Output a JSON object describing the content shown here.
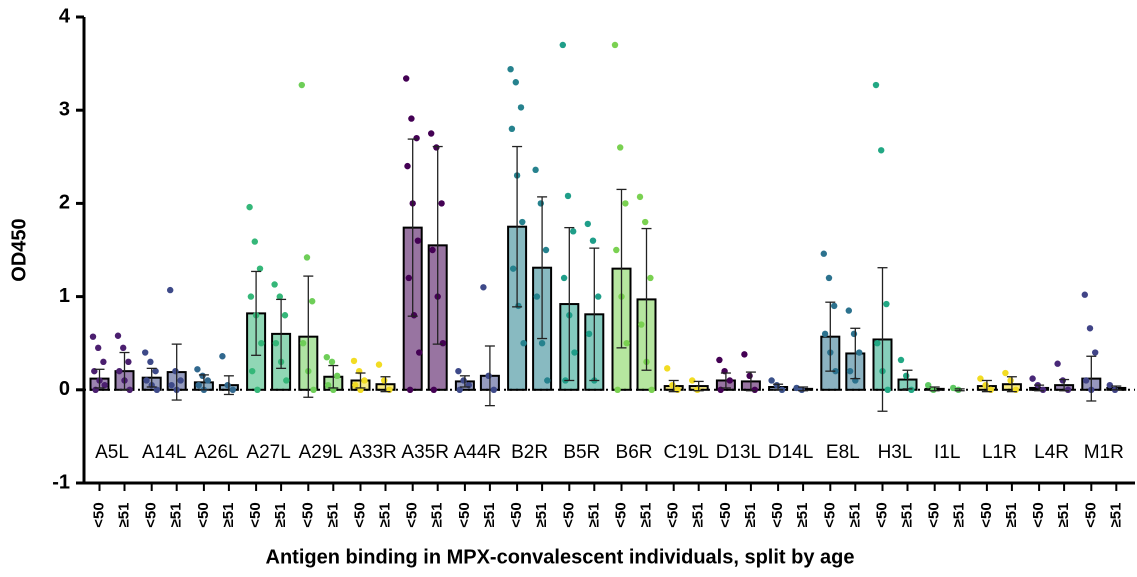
{
  "chart_data": {
    "type": "bar",
    "ylabel": "OD450",
    "xlabel": "Antigen binding in MPX-convalescent individuals, split by age",
    "ylim": [
      -1,
      4
    ],
    "yticks": [
      -1,
      0,
      1,
      2,
      3,
      4
    ],
    "categories": [
      "A5L",
      "A14L",
      "A26L",
      "A27L",
      "A29L",
      "A33R",
      "A35R",
      "A44R",
      "B2R",
      "B5R",
      "B6R",
      "C19L",
      "D13L",
      "D14L",
      "E8L",
      "H3L",
      "I1L",
      "L1R",
      "L4R",
      "M1R"
    ],
    "groups": [
      "<50",
      "≥51"
    ],
    "colors": [
      "#4b1f6f",
      "#3e4a89",
      "#31688e",
      "#35b779",
      "#6ece58",
      "#f2dc23",
      "#440154",
      "#3e4989",
      "#26828e",
      "#1f9e89",
      "#7ad151",
      "#f2dc23",
      "#440154",
      "#3b528b",
      "#2c728e",
      "#22a884",
      "#5ec962",
      "#f2dc23",
      "#482878",
      "#414487"
    ],
    "means": [
      [
        0.12,
        0.2
      ],
      [
        0.13,
        0.19
      ],
      [
        0.08,
        0.05
      ],
      [
        0.82,
        0.6
      ],
      [
        0.57,
        0.14
      ],
      [
        0.1,
        0.06
      ],
      [
        1.74,
        1.55
      ],
      [
        0.09,
        0.15
      ],
      [
        1.75,
        1.31
      ],
      [
        0.92,
        0.81
      ],
      [
        1.3,
        0.97
      ],
      [
        0.04,
        0.04
      ],
      [
        0.1,
        0.09
      ],
      [
        0.03,
        0.01
      ],
      [
        0.57,
        0.39
      ],
      [
        0.54,
        0.11
      ],
      [
        0.01,
        0.0
      ],
      [
        0.04,
        0.06
      ],
      [
        0.02,
        0.05
      ],
      [
        0.12,
        0.02
      ]
    ],
    "errors": [
      [
        0.1,
        0.2
      ],
      [
        0.1,
        0.3
      ],
      [
        0.08,
        0.1
      ],
      [
        0.45,
        0.37
      ],
      [
        0.65,
        0.12
      ],
      [
        0.08,
        0.08
      ],
      [
        0.95,
        1.06
      ],
      [
        0.06,
        0.32
      ],
      [
        0.86,
        0.76
      ],
      [
        0.82,
        0.71
      ],
      [
        0.85,
        0.76
      ],
      [
        0.06,
        0.05
      ],
      [
        0.08,
        0.1
      ],
      [
        0.03,
        0.02
      ],
      [
        0.37,
        0.27
      ],
      [
        0.77,
        0.1
      ],
      [
        0.02,
        0.01
      ],
      [
        0.06,
        0.08
      ],
      [
        0.03,
        0.06
      ],
      [
        0.24,
        0.02
      ]
    ],
    "points": [
      [
        [
          0.57,
          0.45,
          0.3,
          0.2,
          0.1,
          0.05,
          0.0
        ],
        [
          0.58,
          0.45,
          0.3,
          0.2,
          0.1,
          0.0
        ]
      ],
      [
        [
          0.4,
          0.3,
          0.2,
          0.1,
          0.05,
          0.0
        ],
        [
          1.07,
          0.2,
          0.1,
          0.05,
          0.0
        ]
      ],
      [
        [
          0.22,
          0.15,
          0.1,
          0.05,
          0.0
        ],
        [
          0.36,
          0.05,
          0.0
        ]
      ],
      [
        [
          1.96,
          1.59,
          1.3,
          1.0,
          0.8,
          0.5,
          0.2,
          0.0
        ],
        [
          1.13,
          1.0,
          0.8,
          0.5,
          0.3,
          0.1
        ]
      ],
      [
        [
          3.27,
          1.42,
          0.95,
          0.5,
          0.2,
          0.0
        ],
        [
          0.35,
          0.3,
          0.15,
          0.05,
          0.0
        ]
      ],
      [
        [
          0.31,
          0.2,
          0.1,
          0.05,
          0.0
        ],
        [
          0.27,
          0.1,
          0.0
        ]
      ],
      [
        [
          3.34,
          2.91,
          2.7,
          2.4,
          2.0,
          1.6,
          1.2,
          0.8,
          0.4,
          0.0
        ],
        [
          2.75,
          2.6,
          2.0,
          1.5,
          1.0,
          0.5,
          0.0
        ]
      ],
      [
        [
          0.2,
          0.1,
          0.05,
          0.0
        ],
        [
          1.1,
          0.15,
          0.0
        ]
      ],
      [
        [
          3.44,
          3.3,
          3.03,
          2.8,
          2.3,
          1.8,
          1.3,
          0.9,
          0.5
        ],
        [
          2.36,
          2.0,
          1.5,
          1.0,
          0.5,
          0.1
        ]
      ],
      [
        [
          3.7,
          2.08,
          1.7,
          1.2,
          0.8,
          0.4,
          0.1
        ],
        [
          1.78,
          1.6,
          1.0,
          0.6,
          0.1
        ]
      ],
      [
        [
          3.7,
          2.6,
          2.0,
          1.5,
          1.0,
          0.5,
          0.0
        ],
        [
          2.07,
          1.8,
          1.2,
          0.7,
          0.3,
          0.0
        ]
      ],
      [
        [
          0.23,
          0.05,
          0.0
        ],
        [
          0.1,
          0.0
        ]
      ],
      [
        [
          0.32,
          0.2,
          0.1,
          0.0
        ],
        [
          0.38,
          0.15,
          0.0
        ]
      ],
      [
        [
          0.1,
          0.05,
          0.0
        ],
        [
          0.02,
          0.0
        ]
      ],
      [
        [
          1.46,
          1.2,
          0.9,
          0.6,
          0.4,
          0.2
        ],
        [
          0.85,
          0.6,
          0.4,
          0.2,
          0.1
        ]
      ],
      [
        [
          3.27,
          2.57,
          0.92,
          0.5,
          0.2,
          0.0
        ],
        [
          0.32,
          0.15,
          0.0
        ]
      ],
      [
        [
          0.05,
          0.0
        ],
        [
          0.02,
          0.0
        ]
      ],
      [
        [
          0.12,
          0.05,
          0.0
        ],
        [
          0.18,
          0.1,
          0.0
        ]
      ],
      [
        [
          0.12,
          0.05,
          0.0
        ],
        [
          0.28,
          0.1,
          0.0
        ]
      ],
      [
        [
          1.02,
          0.66,
          0.4,
          0.1,
          0.0
        ],
        [
          0.05,
          0.0
        ]
      ]
    ]
  }
}
